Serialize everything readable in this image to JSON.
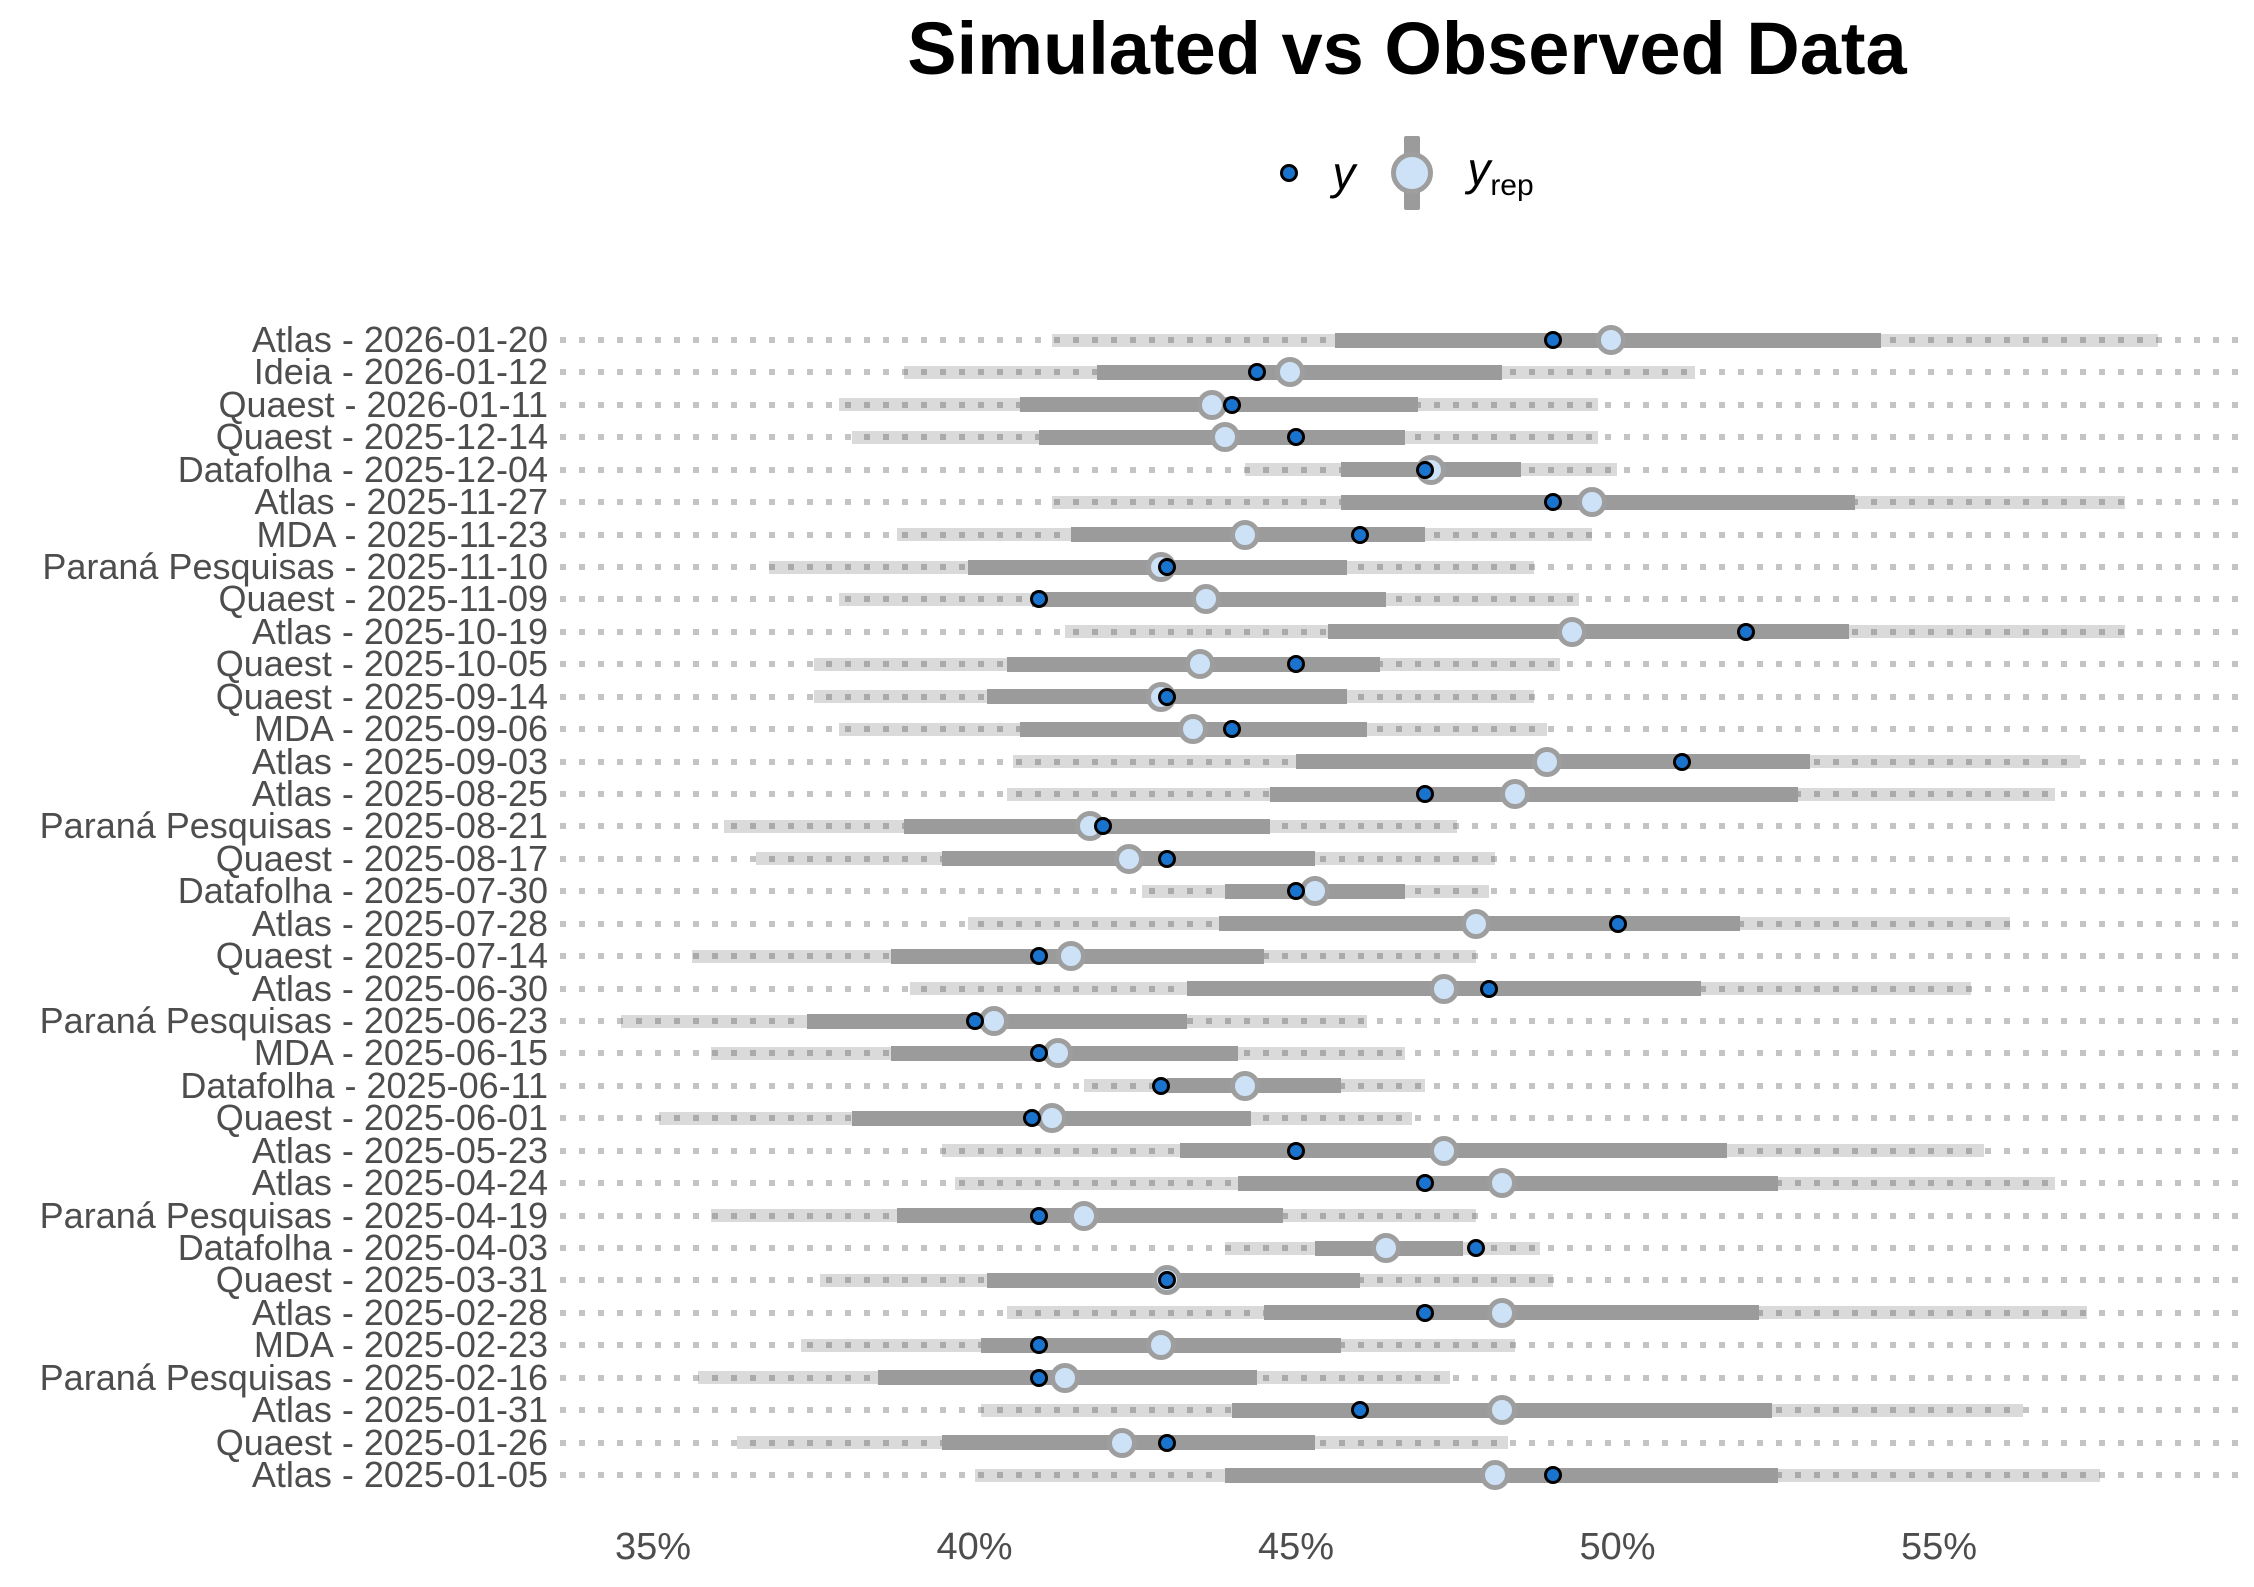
{
  "title": "Simulated vs Observed Data",
  "legend": {
    "y_label": "y",
    "yrep_base": "y",
    "yrep_sub": "rep"
  },
  "colors": {
    "title_text": "#000000",
    "axis_text": "#4d4d4d",
    "background": "#ffffff",
    "y_point_fill": "#1a73cd",
    "y_point_stroke": "#000000",
    "yrep_fill": "#cde2f7",
    "yrep_stroke": "#9e9e9e",
    "inner_interval": "#9b9b9b",
    "outer_interval": "#dadada",
    "grid_dot": "rgba(60,60,60,0.30)"
  },
  "chart_data": {
    "type": "pointinterval",
    "title": "Simulated vs Observed Data",
    "x_unit": "%",
    "x_range": [
      33.5,
      59.9
    ],
    "grid": "dotted-horizontal",
    "legend_position": "top-center",
    "legend_entries": [
      "y",
      "y_rep"
    ],
    "x_ticks": [
      {
        "v": 35,
        "label": "35%"
      },
      {
        "v": 40,
        "label": "40%"
      },
      {
        "v": 45,
        "label": "45%"
      },
      {
        "v": 50,
        "label": "50%"
      },
      {
        "v": 55,
        "label": "55%"
      }
    ],
    "rows": [
      {
        "label": "Atlas - 2026-01-20",
        "outer": [
          41.2,
          58.4
        ],
        "inner": [
          45.6,
          54.1
        ],
        "yrep": 49.9,
        "y": 49.0
      },
      {
        "label": "Ideia - 2026-01-12",
        "outer": [
          38.9,
          51.2
        ],
        "inner": [
          41.9,
          48.2
        ],
        "yrep": 44.9,
        "y": 44.4
      },
      {
        "label": "Quaest - 2026-01-11",
        "outer": [
          37.9,
          49.7
        ],
        "inner": [
          40.7,
          46.9
        ],
        "yrep": 43.7,
        "y": 44.0
      },
      {
        "label": "Quaest - 2025-12-14",
        "outer": [
          38.1,
          49.7
        ],
        "inner": [
          41.0,
          46.7
        ],
        "yrep": 43.9,
        "y": 45.0
      },
      {
        "label": "Datafolha - 2025-12-04",
        "outer": [
          44.2,
          50.0
        ],
        "inner": [
          45.7,
          48.5
        ],
        "yrep": 47.1,
        "y": 47.0
      },
      {
        "label": "Atlas - 2025-11-27",
        "outer": [
          41.2,
          57.9
        ],
        "inner": [
          45.7,
          53.7
        ],
        "yrep": 49.6,
        "y": 49.0
      },
      {
        "label": "MDA - 2025-11-23",
        "outer": [
          38.8,
          49.6
        ],
        "inner": [
          41.5,
          47.0
        ],
        "yrep": 44.2,
        "y": 46.0
      },
      {
        "label": "Paraná Pesquisas - 2025-11-10",
        "outer": [
          36.8,
          48.7
        ],
        "inner": [
          39.9,
          45.8
        ],
        "yrep": 42.9,
        "y": 43.0
      },
      {
        "label": "Quaest - 2025-11-09",
        "outer": [
          37.9,
          49.4
        ],
        "inner": [
          40.9,
          46.4
        ],
        "yrep": 43.6,
        "y": 41.0
      },
      {
        "label": "Atlas - 2025-10-19",
        "outer": [
          41.4,
          57.9
        ],
        "inner": [
          45.5,
          53.6
        ],
        "yrep": 49.3,
        "y": 52.0
      },
      {
        "label": "Quaest - 2025-10-05",
        "outer": [
          37.5,
          49.1
        ],
        "inner": [
          40.5,
          46.3
        ],
        "yrep": 43.5,
        "y": 45.0
      },
      {
        "label": "Quaest - 2025-09-14",
        "outer": [
          37.5,
          48.7
        ],
        "inner": [
          40.2,
          45.8
        ],
        "yrep": 42.9,
        "y": 43.0
      },
      {
        "label": "MDA - 2025-09-06",
        "outer": [
          37.9,
          48.9
        ],
        "inner": [
          40.7,
          46.1
        ],
        "yrep": 43.4,
        "y": 44.0
      },
      {
        "label": "Atlas - 2025-09-03",
        "outer": [
          40.6,
          57.2
        ],
        "inner": [
          45.0,
          53.0
        ],
        "yrep": 48.9,
        "y": 51.0
      },
      {
        "label": "Atlas - 2025-08-25",
        "outer": [
          40.5,
          56.8
        ],
        "inner": [
          44.6,
          52.8
        ],
        "yrep": 48.4,
        "y": 47.0
      },
      {
        "label": "Paraná Pesquisas - 2025-08-21",
        "outer": [
          36.1,
          47.5
        ],
        "inner": [
          38.9,
          44.6
        ],
        "yrep": 41.8,
        "y": 42.0
      },
      {
        "label": "Quaest - 2025-08-17",
        "outer": [
          36.6,
          48.1
        ],
        "inner": [
          39.5,
          45.3
        ],
        "yrep": 42.4,
        "y": 43.0
      },
      {
        "label": "Datafolha - 2025-07-30",
        "outer": [
          42.6,
          48.0
        ],
        "inner": [
          43.9,
          46.7
        ],
        "yrep": 45.3,
        "y": 45.0
      },
      {
        "label": "Atlas - 2025-07-28",
        "outer": [
          39.9,
          56.1
        ],
        "inner": [
          43.8,
          51.9
        ],
        "yrep": 47.8,
        "y": 50.0
      },
      {
        "label": "Quaest - 2025-07-14",
        "outer": [
          35.6,
          47.8
        ],
        "inner": [
          38.7,
          44.5
        ],
        "yrep": 41.5,
        "y": 41.0
      },
      {
        "label": "Atlas - 2025-06-30",
        "outer": [
          39.0,
          55.5
        ],
        "inner": [
          43.3,
          51.3
        ],
        "yrep": 47.3,
        "y": 48.0
      },
      {
        "label": "Paraná Pesquisas - 2025-06-23",
        "outer": [
          34.5,
          46.1
        ],
        "inner": [
          37.4,
          43.3
        ],
        "yrep": 40.3,
        "y": 40.0
      },
      {
        "label": "MDA - 2025-06-15",
        "outer": [
          35.9,
          46.7
        ],
        "inner": [
          38.7,
          44.1
        ],
        "yrep": 41.3,
        "y": 41.0
      },
      {
        "label": "Datafolha - 2025-06-11",
        "outer": [
          41.7,
          47.0
        ],
        "inner": [
          43.0,
          45.7
        ],
        "yrep": 44.2,
        "y": 42.9
      },
      {
        "label": "Quaest - 2025-06-01",
        "outer": [
          35.1,
          46.8
        ],
        "inner": [
          38.1,
          44.3
        ],
        "yrep": 41.2,
        "y": 40.9
      },
      {
        "label": "Atlas - 2025-05-23",
        "outer": [
          39.5,
          55.7
        ],
        "inner": [
          43.2,
          51.7
        ],
        "yrep": 47.3,
        "y": 45.0
      },
      {
        "label": "Atlas - 2025-04-24",
        "outer": [
          39.7,
          56.8
        ],
        "inner": [
          44.1,
          52.5
        ],
        "yrep": 48.2,
        "y": 47.0
      },
      {
        "label": "Paraná Pesquisas - 2025-04-19",
        "outer": [
          35.9,
          47.8
        ],
        "inner": [
          38.8,
          44.8
        ],
        "yrep": 41.7,
        "y": 41.0
      },
      {
        "label": "Datafolha - 2025-04-03",
        "outer": [
          43.9,
          48.8
        ],
        "inner": [
          45.3,
          47.6
        ],
        "yrep": 46.4,
        "y": 47.8
      },
      {
        "label": "Quaest - 2025-03-31",
        "outer": [
          37.6,
          49.0
        ],
        "inner": [
          40.2,
          46.0
        ],
        "yrep": 43.0,
        "y": 43.0
      },
      {
        "label": "Atlas - 2025-02-28",
        "outer": [
          40.5,
          57.3
        ],
        "inner": [
          44.5,
          52.2
        ],
        "yrep": 48.2,
        "y": 47.0
      },
      {
        "label": "MDA - 2025-02-23",
        "outer": [
          37.3,
          48.4
        ],
        "inner": [
          40.1,
          45.7
        ],
        "yrep": 42.9,
        "y": 41.0
      },
      {
        "label": "Paraná Pesquisas - 2025-02-16",
        "outer": [
          35.7,
          47.4
        ],
        "inner": [
          38.5,
          44.4
        ],
        "yrep": 41.4,
        "y": 41.0
      },
      {
        "label": "Atlas - 2025-01-31",
        "outer": [
          40.1,
          56.3
        ],
        "inner": [
          44.0,
          52.4
        ],
        "yrep": 48.2,
        "y": 46.0
      },
      {
        "label": "Quaest - 2025-01-26",
        "outer": [
          36.3,
          48.3
        ],
        "inner": [
          39.5,
          45.3
        ],
        "yrep": 42.3,
        "y": 43.0
      },
      {
        "label": "Atlas - 2025-01-05",
        "outer": [
          40.0,
          57.5
        ],
        "inner": [
          43.9,
          52.5
        ],
        "yrep": 48.1,
        "y": 49.0
      }
    ]
  }
}
